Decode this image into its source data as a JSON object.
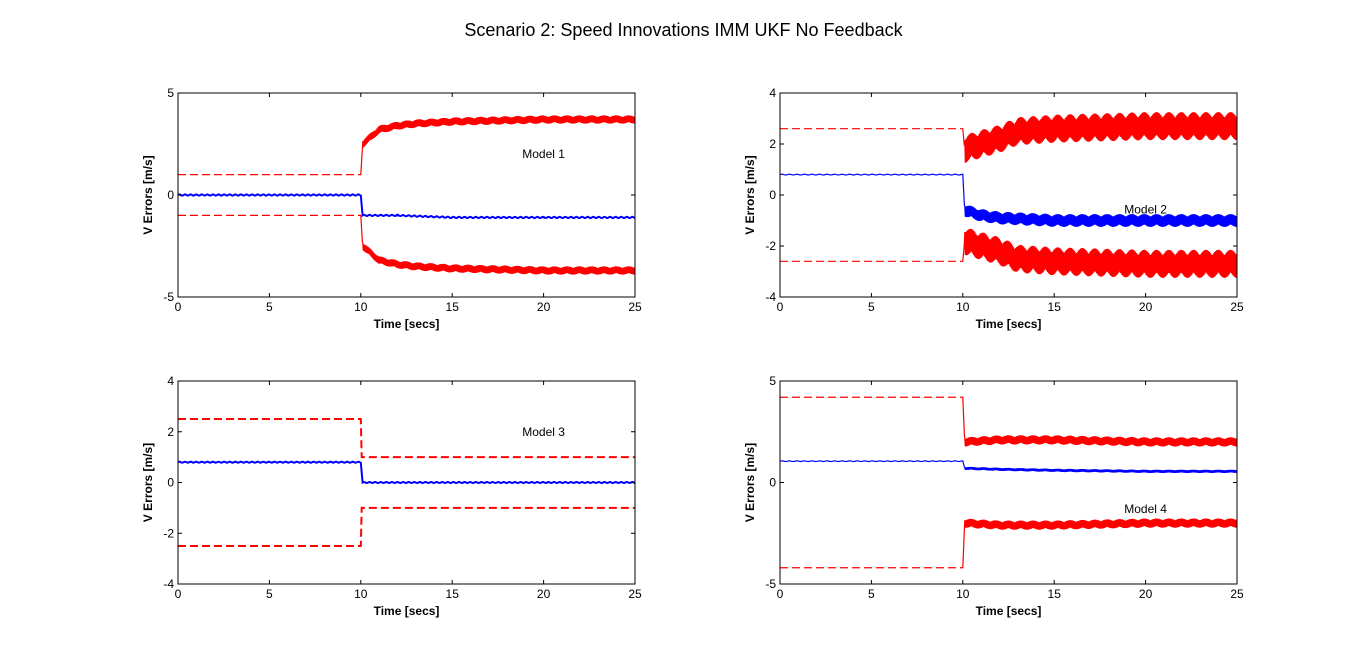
{
  "figure": {
    "title": "Scenario 2: Speed Innovations IMM UKF No Feedback"
  },
  "chart_data": [
    {
      "type": "line",
      "annotation": "Model  1",
      "xlabel": "Time [secs]",
      "ylabel": "V Errors [m/s]",
      "xlim": [
        0,
        25
      ],
      "ylim": [
        -5,
        5
      ],
      "xticks": [
        0,
        5,
        10,
        15,
        20,
        25
      ],
      "yticks": [
        -5,
        0,
        5
      ],
      "series": [
        {
          "color": "#0000ff",
          "style": "solid",
          "noise": 0.03,
          "x": [
            0,
            10,
            10.1,
            12,
            15,
            20,
            25
          ],
          "y": [
            0,
            0,
            -1.0,
            -1.0,
            -1.1,
            -1.1,
            -1.1
          ]
        },
        {
          "color": "#ff0000",
          "style": "dashed",
          "band": true,
          "osc": 0.4,
          "x": [
            0,
            10,
            10.1,
            11,
            12,
            13,
            15,
            20,
            25
          ],
          "y": [
            1.0,
            1.0,
            2.5,
            3.2,
            3.4,
            3.5,
            3.6,
            3.7,
            3.7
          ]
        },
        {
          "color": "#ff0000",
          "style": "dashed",
          "band": true,
          "osc": 0.4,
          "x": [
            0,
            10,
            10.1,
            11,
            12,
            13,
            15,
            20,
            25
          ],
          "y": [
            -1.0,
            -1.0,
            -2.5,
            -3.2,
            -3.4,
            -3.5,
            -3.6,
            -3.7,
            -3.7
          ]
        }
      ]
    },
    {
      "type": "line",
      "annotation": "Model  2",
      "xlabel": "Time [secs]",
      "ylabel": "V Errors [m/s]",
      "xlim": [
        0,
        25
      ],
      "ylim": [
        -4,
        4
      ],
      "xticks": [
        0,
        5,
        10,
        15,
        20,
        25
      ],
      "yticks": [
        -4,
        -2,
        0,
        2,
        4
      ],
      "series": [
        {
          "color": "#0000ff",
          "style": "solid",
          "band": true,
          "osc": 0.5,
          "noise": 0.03,
          "x": [
            0,
            10,
            10.1,
            11,
            12,
            15,
            20,
            25
          ],
          "y": [
            0.8,
            0.8,
            -0.6,
            -0.8,
            -0.9,
            -1.0,
            -1.0,
            -1.0
          ]
        },
        {
          "color": "#ff0000",
          "style": "dashed",
          "band": true,
          "osc": 1.1,
          "x": [
            0,
            10,
            10.1,
            11,
            12,
            13,
            15,
            20,
            25
          ],
          "y": [
            2.6,
            2.6,
            1.8,
            2.0,
            2.2,
            2.5,
            2.6,
            2.7,
            2.7
          ]
        },
        {
          "color": "#ff0000",
          "style": "dashed",
          "band": true,
          "osc": 1.1,
          "x": [
            0,
            10,
            10.1,
            11,
            12,
            13,
            15,
            20,
            25
          ],
          "y": [
            -2.6,
            -2.6,
            -1.8,
            -2.0,
            -2.2,
            -2.5,
            -2.6,
            -2.7,
            -2.7
          ]
        }
      ]
    },
    {
      "type": "line",
      "annotation": "Model  3",
      "xlabel": "Time [secs]",
      "ylabel": "V Errors [m/s]",
      "xlim": [
        0,
        25
      ],
      "ylim": [
        -4,
        4
      ],
      "xticks": [
        0,
        5,
        10,
        15,
        20,
        25
      ],
      "yticks": [
        -4,
        -2,
        0,
        2,
        4
      ],
      "series": [
        {
          "color": "#0000ff",
          "style": "solid",
          "noise": 0.02,
          "x": [
            0,
            10,
            10.1,
            25
          ],
          "y": [
            0.8,
            0.8,
            0,
            0
          ]
        },
        {
          "color": "#ff0000",
          "style": "dashed",
          "x": [
            0,
            10,
            10.05,
            25
          ],
          "y": [
            2.5,
            2.5,
            1.0,
            1.0
          ]
        },
        {
          "color": "#ff0000",
          "style": "dashed",
          "x": [
            0,
            10,
            10.05,
            25
          ],
          "y": [
            -2.5,
            -2.5,
            -1.0,
            -1.0
          ]
        }
      ]
    },
    {
      "type": "line",
      "annotation": "Model  4",
      "xlabel": "Time [secs]",
      "ylabel": "V Errors [m/s]",
      "xlim": [
        0,
        25
      ],
      "ylim": [
        -5,
        5
      ],
      "xticks": [
        0,
        5,
        10,
        15,
        20,
        25
      ],
      "yticks": [
        -5,
        0,
        5
      ],
      "series": [
        {
          "color": "#0000ff",
          "style": "solid",
          "band": true,
          "osc": 0.15,
          "noise": 0.03,
          "x": [
            0,
            10,
            10.1,
            12,
            15,
            20,
            25
          ],
          "y": [
            1.05,
            1.05,
            0.7,
            0.65,
            0.6,
            0.55,
            0.55
          ]
        },
        {
          "color": "#ff0000",
          "style": "dashed",
          "band": true,
          "osc": 0.45,
          "x": [
            0,
            10,
            10.1,
            12,
            15,
            20,
            25
          ],
          "y": [
            4.2,
            4.2,
            2.0,
            2.1,
            2.1,
            2.0,
            2.0
          ]
        },
        {
          "color": "#ff0000",
          "style": "dashed",
          "band": true,
          "osc": 0.45,
          "x": [
            0,
            10,
            10.1,
            12,
            15,
            20,
            25
          ],
          "y": [
            -4.2,
            -4.2,
            -2.0,
            -2.1,
            -2.1,
            -2.0,
            -2.0
          ]
        }
      ]
    }
  ]
}
